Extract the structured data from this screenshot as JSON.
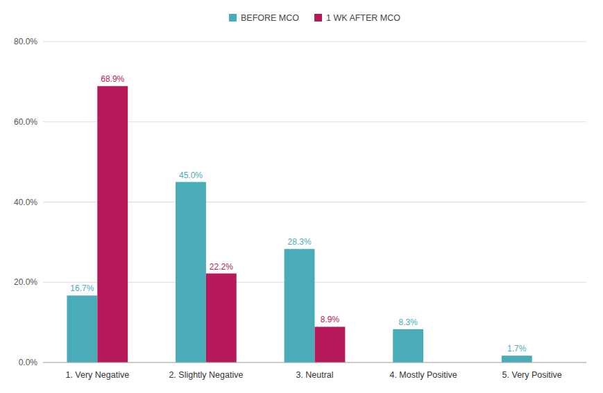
{
  "chart_data": {
    "type": "bar",
    "categories": [
      "1. Very Negative",
      "2. Slightly Negative",
      "3. Neutral",
      "4. Mostly Positive",
      "5. Very Positive"
    ],
    "series": [
      {
        "name": "BEFORE MCO",
        "color": "#4AACB8",
        "values": [
          16.7,
          45.0,
          28.3,
          8.3,
          1.7
        ],
        "value_labels": [
          "16.7%",
          "45.0%",
          "28.3%",
          "8.3%",
          "1.7%"
        ]
      },
      {
        "name": "1 WK AFTER MCO",
        "color": "#B5195A",
        "values": [
          68.9,
          22.2,
          8.9,
          0.0,
          0.0
        ],
        "value_labels": [
          "68.9%",
          "22.2%",
          "8.9%",
          null,
          null
        ]
      }
    ],
    "ylim": [
      0,
      80
    ],
    "yticks": [
      {
        "value": 0,
        "label": "0.0%"
      },
      {
        "value": 20,
        "label": "20.0%"
      },
      {
        "value": 40,
        "label": "40.0%"
      },
      {
        "value": 60,
        "label": "60.0%"
      },
      {
        "value": 80,
        "label": "80.0%"
      }
    ],
    "grid": true,
    "legend": "top",
    "data_labels": true
  }
}
